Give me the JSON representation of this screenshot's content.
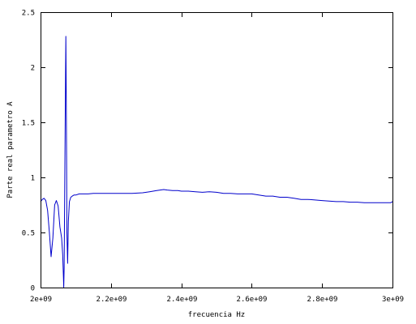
{
  "chart_data": {
    "type": "line",
    "title": "",
    "xlabel": "frecuencia Hz",
    "ylabel": "Parte real parametro A",
    "xlim": [
      2000000000,
      3000000000
    ],
    "ylim": [
      0,
      2.5
    ],
    "x_ticks": [
      2000000000,
      2200000000,
      2400000000,
      2600000000,
      2800000000,
      3000000000
    ],
    "x_tick_labels": [
      "2e+09",
      "2.2e+09",
      "2.4e+09",
      "2.6e+09",
      "2.8e+09",
      "3e+09"
    ],
    "y_ticks": [
      0,
      0.5,
      1,
      1.5,
      2,
      2.5
    ],
    "y_tick_labels": [
      "0",
      "0.5",
      "1",
      "1.5",
      "2",
      "2.5"
    ],
    "grid": false,
    "legend": "none",
    "series": [
      {
        "color": "#0000cc",
        "x": [
          2000000000,
          2005000000,
          2010000000,
          2015000000,
          2020000000,
          2025000000,
          2030000000,
          2035000000,
          2040000000,
          2045000000,
          2050000000,
          2055000000,
          2060000000,
          2063000000,
          2065000000,
          2066000000,
          2067000000,
          2069000000,
          2071000000,
          2072000000,
          2073000000,
          2074000000,
          2075000000,
          2077000000,
          2079000000,
          2082000000,
          2086000000,
          2090000000,
          2095000000,
          2100000000,
          2110000000,
          2120000000,
          2135000000,
          2150000000,
          2175000000,
          2200000000,
          2230000000,
          2260000000,
          2290000000,
          2310000000,
          2330000000,
          2350000000,
          2360000000,
          2375000000,
          2390000000,
          2400000000,
          2420000000,
          2440000000,
          2460000000,
          2480000000,
          2500000000,
          2520000000,
          2540000000,
          2560000000,
          2580000000,
          2600000000,
          2620000000,
          2640000000,
          2660000000,
          2680000000,
          2700000000,
          2720000000,
          2740000000,
          2760000000,
          2780000000,
          2800000000,
          2820000000,
          2840000000,
          2860000000,
          2880000000,
          2900000000,
          2920000000,
          2940000000,
          2960000000,
          2980000000,
          2995000000,
          3000000000
        ],
        "y": [
          0.78,
          0.8,
          0.81,
          0.79,
          0.7,
          0.5,
          0.28,
          0.45,
          0.75,
          0.79,
          0.74,
          0.55,
          0.45,
          0.3,
          0.1,
          0.0,
          0.18,
          1.0,
          1.9,
          2.28,
          1.75,
          1.2,
          0.5,
          0.22,
          0.6,
          0.78,
          0.82,
          0.83,
          0.84,
          0.84,
          0.85,
          0.85,
          0.85,
          0.855,
          0.855,
          0.855,
          0.855,
          0.855,
          0.86,
          0.87,
          0.88,
          0.89,
          0.885,
          0.88,
          0.88,
          0.875,
          0.875,
          0.87,
          0.865,
          0.87,
          0.865,
          0.855,
          0.855,
          0.85,
          0.85,
          0.85,
          0.84,
          0.83,
          0.83,
          0.82,
          0.82,
          0.81,
          0.8,
          0.8,
          0.795,
          0.79,
          0.785,
          0.78,
          0.78,
          0.775,
          0.775,
          0.77,
          0.77,
          0.77,
          0.77,
          0.77,
          0.78
        ]
      }
    ]
  }
}
